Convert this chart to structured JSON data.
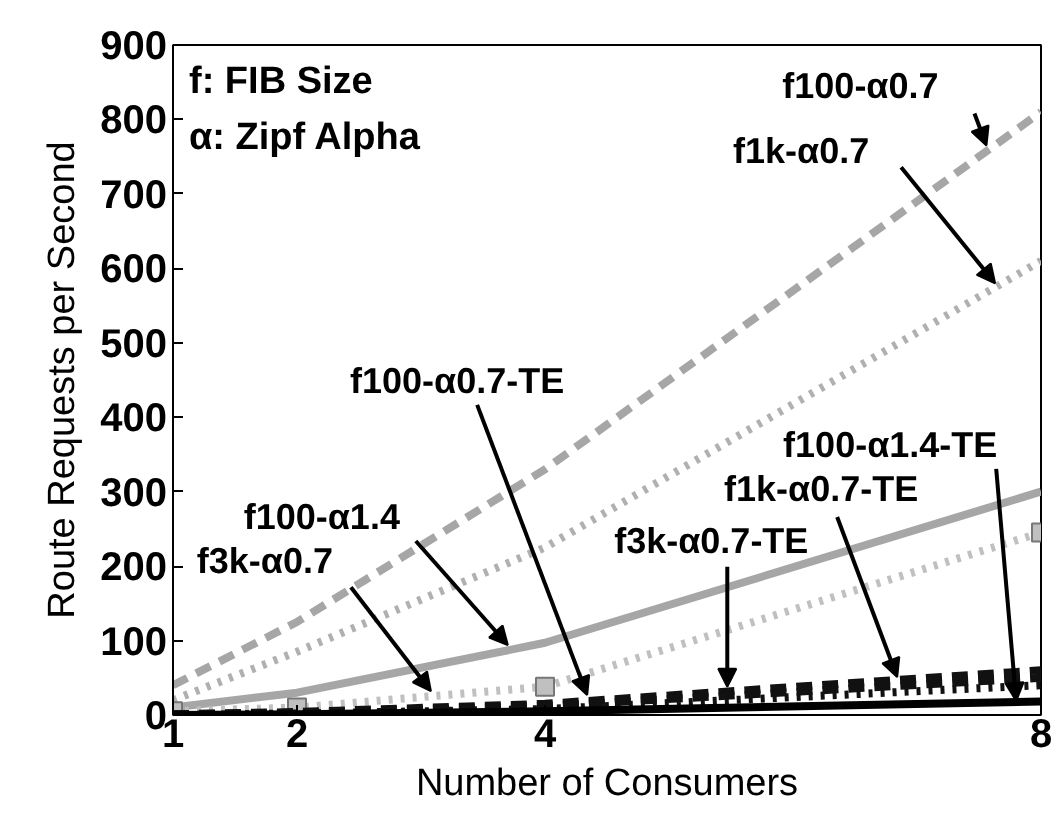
{
  "chart_data": {
    "type": "line",
    "xlabel": "Number of Consumers",
    "ylabel": "Route Requests per Second",
    "x": [
      1,
      2,
      4,
      8
    ],
    "xlim": [
      1,
      8
    ],
    "xticks": [
      1,
      2,
      4,
      8
    ],
    "ylim": [
      0,
      900
    ],
    "yticks": [
      0,
      100,
      200,
      300,
      400,
      500,
      600,
      700,
      800,
      900
    ],
    "grid": false,
    "line_style": "solid",
    "series": [
      {
        "color": "#a6a6a6",
        "line_style": "dashed",
        "values": [
          40,
          125,
          330,
          810
        ]
      },
      {
        "color": "#b0b0b0",
        "line_style": "dotted",
        "values": [
          20,
          85,
          225,
          610
        ]
      },
      {
        "color": "#a6a6a6",
        "values": [
          10,
          30,
          97,
          300
        ]
      },
      {
        "color": "#c0c0c0",
        "line_style": "dotted",
        "marker": "square",
        "values": [
          5,
          10,
          38,
          245
        ]
      },
      {
        "color": "#111111",
        "line_style": "dashed",
        "values": [
          1,
          4,
          15,
          60
        ]
      },
      {
        "color": "#111111",
        "line_style": "dashed",
        "values": [
          1,
          3,
          12,
          50
        ]
      },
      {
        "color": "#111111",
        "line_style": "dotted",
        "values": [
          0,
          2,
          8,
          40
        ]
      },
      {
        "color": "#000000",
        "values": [
          0,
          1,
          5,
          18
        ]
      }
    ],
    "annotations": [
      "f: FIB Size",
      "α: Zipf Alpha",
      {
        "text": "f100-α0.7",
        "x": 7.56,
        "y": 765
      },
      {
        "text": "f1k-α0.7",
        "x": 7.63,
        "y": 580
      },
      {
        "text": "f100-α0.7-TE",
        "x": 4.34,
        "y": 27
      },
      {
        "text": "f100-α1.4",
        "x": 3.7,
        "y": 94
      },
      {
        "text": "f3k-α0.7",
        "x": 3.08,
        "y": 32
      },
      {
        "text": "f3k-α0.7-TE",
        "x": 5.47,
        "y": 38
      },
      {
        "text": "f1k-α0.7-TE",
        "x": 6.84,
        "y": 51
      },
      {
        "text": "f100-α1.4-TE",
        "x": 7.8,
        "y": 19
      }
    ]
  }
}
